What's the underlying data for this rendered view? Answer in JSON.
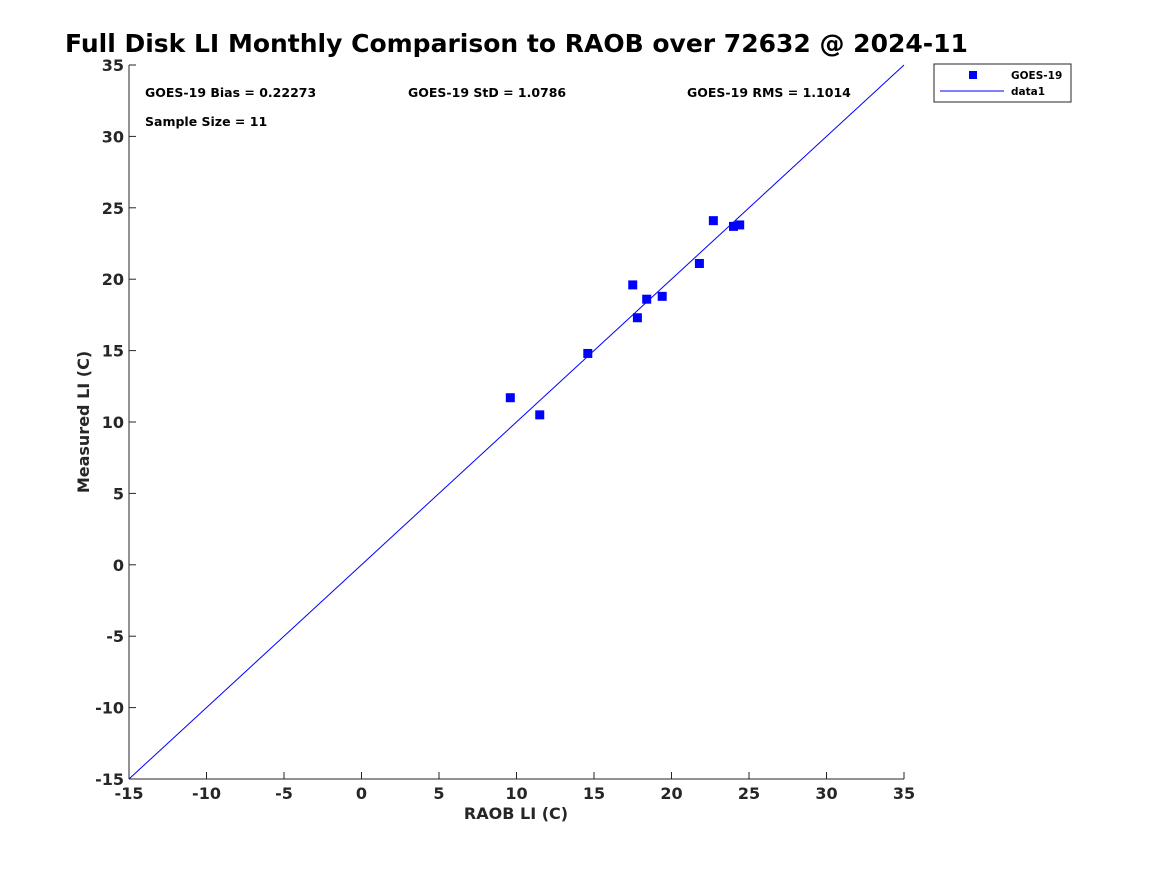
{
  "chart_data": {
    "type": "scatter",
    "title": "Full Disk LI Monthly Comparison to RAOB over 72632 @ 2024-11",
    "xlabel": "RAOB LI (C)",
    "ylabel": "Measured LI (C)",
    "xlim": [
      -15,
      35
    ],
    "ylim": [
      -15,
      35
    ],
    "xticks": [
      -15,
      -10,
      -5,
      0,
      5,
      10,
      15,
      20,
      25,
      30,
      35
    ],
    "yticks": [
      -15,
      -10,
      -5,
      0,
      5,
      10,
      15,
      20,
      25,
      30,
      35
    ],
    "xtick_labels": [
      "-15",
      "-10",
      "-5",
      "0",
      "5",
      "10",
      "15",
      "20",
      "25",
      "30",
      "35"
    ],
    "ytick_labels": [
      "-15",
      "-10",
      "-5",
      "0",
      "5",
      "10",
      "15",
      "20",
      "25",
      "30",
      "35"
    ],
    "grid": false,
    "legend_position": "top-right outside",
    "series": [
      {
        "name": "GOES-19",
        "type": "scatter",
        "marker": "square",
        "color": "#0000ff",
        "points": [
          {
            "x": 9.6,
            "y": 11.7
          },
          {
            "x": 11.5,
            "y": 10.5
          },
          {
            "x": 14.6,
            "y": 14.8
          },
          {
            "x": 17.5,
            "y": 19.6
          },
          {
            "x": 17.8,
            "y": 17.3
          },
          {
            "x": 18.4,
            "y": 18.6
          },
          {
            "x": 19.4,
            "y": 18.8
          },
          {
            "x": 21.8,
            "y": 21.1
          },
          {
            "x": 22.7,
            "y": 24.1
          },
          {
            "x": 24.0,
            "y": 23.7
          },
          {
            "x": 24.4,
            "y": 23.8
          }
        ]
      },
      {
        "name": "data1",
        "type": "line",
        "color": "#0000ff",
        "points": [
          {
            "x": -15,
            "y": -15
          },
          {
            "x": 35,
            "y": 35
          }
        ]
      }
    ],
    "annotations": {
      "bias": "GOES-19 Bias = 0.22273",
      "std": "GOES-19 StD = 1.0786",
      "rms": "GOES-19 RMS = 1.1014",
      "sample_size": "Sample Size = 11"
    }
  }
}
